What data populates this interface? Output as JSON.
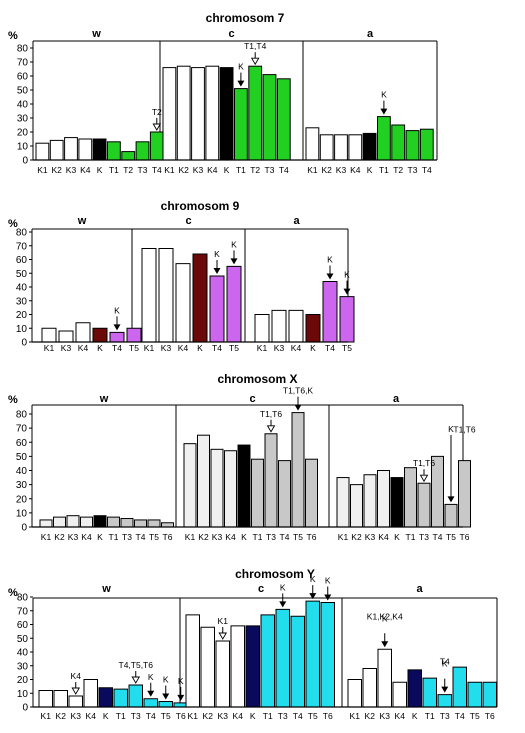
{
  "colors": {
    "ch7": "#22d022",
    "ch9": "#cc66ee",
    "chX": "#c8c8c8",
    "chY": "#22ddee",
    "k7": "#000000",
    "k9": "#6b0808",
    "kX": "#000000",
    "kY": "#0a0a5c",
    "edge": "#000000"
  },
  "chart_data": [
    {
      "type": "bar",
      "title": "chromosom 7",
      "ylabel": "%",
      "ylim": [
        0,
        80
      ],
      "yticks": [
        0,
        10,
        20,
        30,
        40,
        50,
        60,
        70,
        80
      ],
      "sections": [
        {
          "label": "w",
          "categories": [
            "K1",
            "K2",
            "K3",
            "K4",
            "K",
            "T1",
            "T2",
            "T3",
            "T4"
          ],
          "values": [
            12,
            14,
            16,
            15,
            15,
            13,
            6,
            13,
            20
          ],
          "styles": [
            "w",
            "w",
            "w",
            "w",
            "k",
            "c",
            "c",
            "c",
            "c"
          ]
        },
        {
          "label": "c",
          "categories": [
            "K1",
            "K2",
            "K3",
            "K4",
            "K",
            "T1",
            "T2",
            "T3",
            "T4"
          ],
          "values": [
            66,
            67,
            66,
            67,
            66,
            51,
            67,
            61,
            58
          ],
          "styles": [
            "w",
            "w",
            "w",
            "w",
            "k",
            "c",
            "c",
            "c",
            "c"
          ]
        },
        {
          "label": "a",
          "categories": [
            "K1",
            "K2",
            "K3",
            "K4",
            "K",
            "T1",
            "T2",
            "T3",
            "T4"
          ],
          "values": [
            23,
            18,
            18,
            18,
            19,
            31,
            25,
            21,
            22
          ],
          "styles": [
            "w",
            "w",
            "w",
            "w",
            "k",
            "c",
            "c",
            "c",
            "c"
          ]
        }
      ],
      "annotations": [
        {
          "text": "T2",
          "section": 0,
          "bar": 8,
          "arrow": "open"
        },
        {
          "text": "K",
          "section": 1,
          "bar": 5,
          "arrow": "filled"
        },
        {
          "text": "T1,T4",
          "section": 1,
          "bar": 6,
          "arrow": "open"
        },
        {
          "text": "K",
          "section": 2,
          "bar": 5,
          "arrow": "filled"
        }
      ]
    },
    {
      "type": "bar",
      "title": "chromosom 9",
      "ylabel": "%",
      "ylim": [
        0,
        80
      ],
      "yticks": [
        0,
        10,
        20,
        30,
        40,
        50,
        60,
        70,
        80
      ],
      "sections": [
        {
          "label": "w",
          "categories": [
            "K1",
            "K3",
            "K4",
            "K",
            "T4",
            "T5"
          ],
          "values": [
            10,
            8,
            14,
            10,
            7,
            10
          ],
          "styles": [
            "w",
            "w",
            "w",
            "k",
            "c",
            "c"
          ]
        },
        {
          "label": "c",
          "categories": [
            "K1",
            "K3",
            "K4",
            "K",
            "T4",
            "T5"
          ],
          "values": [
            68,
            68,
            57,
            64,
            48,
            55
          ],
          "styles": [
            "w",
            "w",
            "w",
            "k",
            "c",
            "c"
          ]
        },
        {
          "label": "a",
          "categories": [
            "K1",
            "K3",
            "K4",
            "K",
            "T4",
            "T5"
          ],
          "values": [
            20,
            23,
            23,
            20,
            44,
            33
          ],
          "styles": [
            "w",
            "w",
            "w",
            "k",
            "c",
            "c"
          ]
        }
      ],
      "annotations": [
        {
          "text": "K",
          "section": 0,
          "bar": 4,
          "arrow": "filled"
        },
        {
          "text": "K",
          "section": 1,
          "bar": 4,
          "arrow": "filled"
        },
        {
          "text": "K",
          "section": 1,
          "bar": 5,
          "arrow": "filled"
        },
        {
          "text": "K",
          "section": 2,
          "bar": 4,
          "arrow": "filled"
        },
        {
          "text": "K",
          "section": 2,
          "bar": 5,
          "arrow": "filled"
        }
      ]
    },
    {
      "type": "bar",
      "title": "chromosom X",
      "ylabel": "%",
      "ylim": [
        0,
        80
      ],
      "yticks": [
        0,
        10,
        20,
        30,
        40,
        50,
        60,
        70,
        80
      ],
      "sections": [
        {
          "label": "w",
          "categories": [
            "K1",
            "K2",
            "K3",
            "K4",
            "K",
            "T1",
            "T3",
            "T4",
            "T5",
            "T6"
          ],
          "values": [
            5,
            7,
            8,
            7,
            8,
            7,
            6,
            5,
            5,
            3
          ],
          "styles": [
            "w",
            "w",
            "w",
            "w",
            "k",
            "c",
            "c",
            "c",
            "c",
            "c"
          ]
        },
        {
          "label": "c",
          "categories": [
            "K1",
            "K2",
            "K3",
            "K4",
            "K",
            "T1",
            "T3",
            "T4",
            "T5",
            "T6"
          ],
          "values": [
            59,
            65,
            55,
            54,
            58,
            48,
            66,
            47,
            81,
            48
          ],
          "styles": [
            "w",
            "w",
            "w",
            "w",
            "k",
            "c",
            "c",
            "c",
            "c",
            "c"
          ]
        },
        {
          "label": "a",
          "categories": [
            "K1",
            "K2",
            "K3",
            "K4",
            "K",
            "T1",
            "T3",
            "T4",
            "T5",
            "T6"
          ],
          "values": [
            35,
            30,
            37,
            40,
            35,
            42,
            31,
            50,
            16,
            47
          ],
          "styles": [
            "w",
            "w",
            "w",
            "w",
            "k",
            "c",
            "c",
            "c",
            "c",
            "c"
          ]
        }
      ],
      "annotations": [
        {
          "text": "T1,T6",
          "section": 1,
          "bar": 6,
          "arrow": "open"
        },
        {
          "text": "T1,T6,K",
          "section": 1,
          "bar": 8,
          "arrow": "filled"
        },
        {
          "text": "T1,T6",
          "section": 2,
          "bar": 6,
          "arrow": "open"
        },
        {
          "text": "K",
          "section": 2,
          "bar": 8,
          "arrow": "long"
        },
        {
          "text": "T1,T6",
          "section": 2,
          "bar": 9,
          "arrow": "none"
        }
      ]
    },
    {
      "type": "bar",
      "title": "chromosom Y",
      "ylabel": "%",
      "ylim": [
        0,
        80
      ],
      "yticks": [
        0,
        10,
        20,
        30,
        40,
        50,
        60,
        70,
        80
      ],
      "sections": [
        {
          "label": "w",
          "categories": [
            "K1",
            "K2",
            "K3",
            "K4",
            "K",
            "T1",
            "T3",
            "T4",
            "T5",
            "T6"
          ],
          "values": [
            12,
            12,
            8,
            20,
            14,
            13,
            16,
            6,
            4,
            3
          ],
          "styles": [
            "w",
            "w",
            "w",
            "w",
            "k",
            "c",
            "c",
            "c",
            "c",
            "c"
          ]
        },
        {
          "label": "c",
          "categories": [
            "K1",
            "K2",
            "K3",
            "K4",
            "K",
            "T1",
            "T3",
            "T4",
            "T5",
            "T6"
          ],
          "values": [
            67,
            58,
            48,
            59,
            59,
            67,
            71,
            66,
            77,
            76
          ],
          "styles": [
            "w",
            "w",
            "w",
            "w",
            "k",
            "c",
            "c",
            "c",
            "c",
            "c"
          ]
        },
        {
          "label": "a",
          "categories": [
            "K1",
            "K2",
            "K3",
            "K4",
            "K",
            "T1",
            "T3",
            "T4",
            "T5",
            "T6"
          ],
          "values": [
            20,
            28,
            42,
            18,
            27,
            21,
            9,
            29,
            18,
            18
          ],
          "styles": [
            "w",
            "w",
            "w",
            "w",
            "k",
            "c",
            "c",
            "c",
            "c",
            "c"
          ]
        }
      ],
      "annotations": [
        {
          "text": "K4",
          "section": 0,
          "bar": 2,
          "arrow": "open"
        },
        {
          "text": "T4,T5,T6",
          "section": 0,
          "bar": 6,
          "arrow": "open"
        },
        {
          "text": "K",
          "section": 0,
          "bar": 7,
          "arrow": "filled"
        },
        {
          "text": "K",
          "section": 0,
          "bar": 8,
          "arrow": "filled"
        },
        {
          "text": "K",
          "section": 0,
          "bar": 9,
          "arrow": "filled"
        },
        {
          "text": "K1",
          "section": 1,
          "bar": 2,
          "arrow": "open"
        },
        {
          "text": "K",
          "section": 1,
          "bar": 6,
          "arrow": "filled"
        },
        {
          "text": "K",
          "section": 1,
          "bar": 8,
          "arrow": "filled"
        },
        {
          "text": "K",
          "section": 1,
          "bar": 9,
          "arrow": "filled"
        },
        {
          "text": "K",
          "section": 2,
          "bar": 2,
          "arrow": "none"
        },
        {
          "text": "K1,K2,K4",
          "section": 2,
          "bar": 2,
          "arrow": "filled"
        },
        {
          "text": "K",
          "section": 2,
          "bar": 6,
          "arrow": "none"
        },
        {
          "text": "T4",
          "section": 2,
          "bar": 6,
          "arrow": "filled"
        }
      ]
    }
  ]
}
